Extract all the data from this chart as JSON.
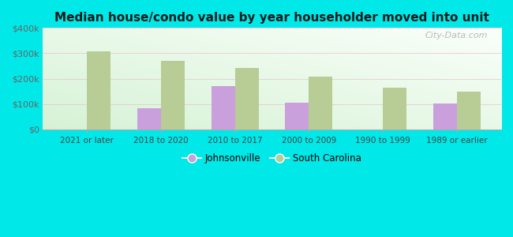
{
  "title": "Median house/condo value by year householder moved into unit",
  "categories": [
    "2021 or later",
    "2018 to 2020",
    "2010 to 2017",
    "2000 to 2009",
    "1990 to 1999",
    "1989 or earlier"
  ],
  "johnsonville_values": [
    0,
    85000,
    170000,
    105000,
    0,
    103000
  ],
  "south_carolina_values": [
    307000,
    270000,
    242000,
    208000,
    163000,
    148000
  ],
  "johnsonville_color": "#c9a0dc",
  "south_carolina_color": "#b8cc96",
  "plot_bg_color_bottom_left": "#d4f0d4",
  "plot_bg_color_top_right": "#f5fff5",
  "outer_background": "#00e8e8",
  "ylim": [
    0,
    400000
  ],
  "yticks": [
    0,
    100000,
    200000,
    300000,
    400000
  ],
  "ytick_labels": [
    "$0",
    "$100k",
    "$200k",
    "$300k",
    "$400k"
  ],
  "bar_width": 0.32,
  "watermark": "City-Data.com",
  "legend_labels": [
    "Johnsonville",
    "South Carolina"
  ]
}
